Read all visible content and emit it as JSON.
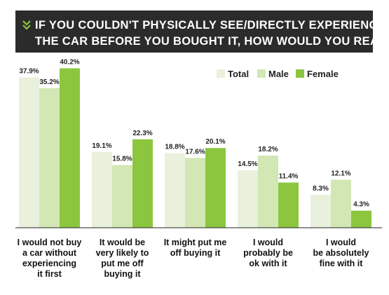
{
  "title_lines": [
    "IF YOU COULDN'T PHYSICALLY SEE/DIRECTLY EXPERIENCE",
    "THE CAR BEFORE YOU BOUGHT IT, HOW WOULD YOU REACT?"
  ],
  "title_icon": "double-chevron-down-icon",
  "colors": {
    "title_bg": "#2b2b2b",
    "title_text": "#ffffff",
    "accent": "#8cc63f",
    "total": "#e9f1dc",
    "male": "#d2e7b3",
    "female": "#8cc63f"
  },
  "chart_data": {
    "type": "bar",
    "title": "IF YOU COULDN'T PHYSICALLY SEE/DIRECTLY EXPERIENCE THE CAR BEFORE YOU BOUGHT IT, HOW WOULD YOU REACT?",
    "categories": [
      [
        "I would not buy",
        "a car without",
        "experiencing",
        "it first"
      ],
      [
        "It would be",
        "very likely to",
        "put me off",
        "buying it"
      ],
      [
        "It might put me",
        "off buying it"
      ],
      [
        "I would",
        "probably be",
        "ok with it"
      ],
      [
        "I would",
        "be absolutely",
        "fine with it"
      ]
    ],
    "series": [
      {
        "name": "Total",
        "values": [
          37.9,
          19.1,
          18.8,
          14.5,
          8.3
        ],
        "labels": [
          "37.9%",
          "19.1%",
          "18.8%",
          "14.5%",
          "8.3%"
        ]
      },
      {
        "name": "Male",
        "values": [
          35.2,
          15.8,
          17.6,
          18.2,
          12.1
        ],
        "labels": [
          "35.2%",
          "15.8%",
          "17.6%",
          "18.2%",
          "12.1%"
        ]
      },
      {
        "name": "Female",
        "values": [
          40.2,
          22.3,
          20.1,
          11.4,
          4.3
        ],
        "labels": [
          "40.2%",
          "22.3%",
          "20.1%",
          "11.4%",
          "4.3%"
        ]
      }
    ],
    "ylim": [
      0,
      45
    ],
    "legend": "top-right",
    "grid": false
  }
}
